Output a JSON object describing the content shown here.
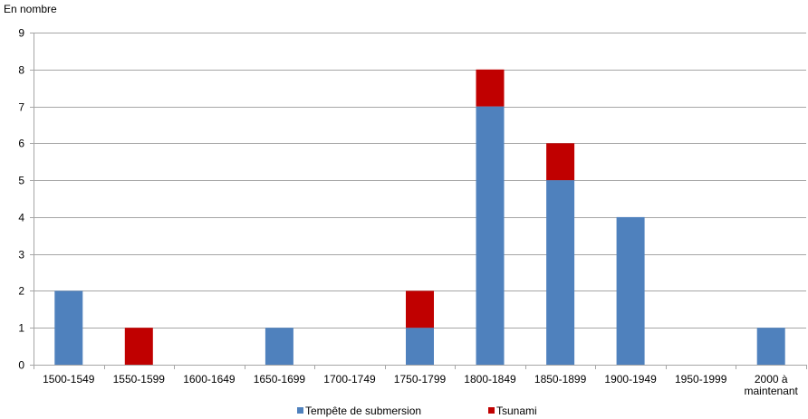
{
  "chart_data": {
    "type": "bar",
    "stacked": true,
    "title": "",
    "xlabel": "",
    "ylabel": "En nombre",
    "ylim": [
      0,
      9
    ],
    "yticks": [
      0,
      1,
      2,
      3,
      4,
      5,
      6,
      7,
      8,
      9
    ],
    "grid": true,
    "legend_position": "bottom",
    "categories": [
      [
        "1500-1549"
      ],
      [
        "1550-1599"
      ],
      [
        "1600-1649"
      ],
      [
        "1650-1699"
      ],
      [
        "1700-1749"
      ],
      [
        "1750-1799"
      ],
      [
        "1800-1849"
      ],
      [
        "1850-1899"
      ],
      [
        "1900-1949"
      ],
      [
        "1950-1999"
      ],
      [
        "2000 à",
        "maintenant"
      ]
    ],
    "series": [
      {
        "name": "Tempête de submersion",
        "color": "#4f81bd",
        "values": [
          2,
          0,
          0,
          1,
          0,
          1,
          7,
          5,
          4,
          0,
          1
        ]
      },
      {
        "name": "Tsunami",
        "color": "#c00000",
        "values": [
          0,
          1,
          0,
          0,
          0,
          1,
          1,
          1,
          0,
          0,
          0
        ]
      }
    ]
  }
}
